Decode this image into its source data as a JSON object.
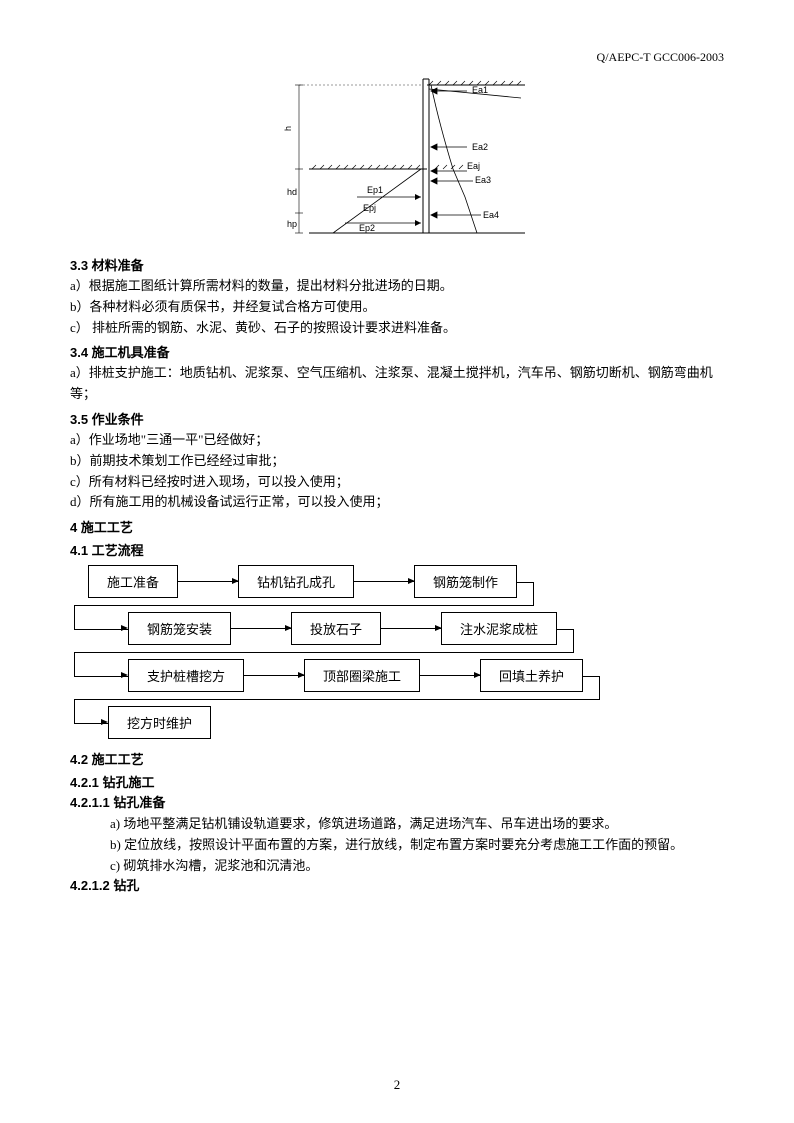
{
  "header": {
    "code": "Q/AEPC-T GCC006-2003"
  },
  "diagram": {
    "labels": {
      "Ea1": "Ea1",
      "Ea2": "Ea2",
      "Eaj": "Eaj",
      "Ea3": "Ea3",
      "Ea4": "Ea4",
      "Ep1": "Ep1",
      "Epj": "Epj",
      "Ep2": "Ep2",
      "h": "h",
      "hd": "hd",
      "hp": "hp"
    },
    "colors": {
      "line": "#000000",
      "bg": "#ffffff"
    }
  },
  "sections": {
    "s33": {
      "title": "3.3 材料准备",
      "items": [
        "a）根据施工图纸计算所需材料的数量，提出材料分批进场的日期。",
        "b）各种材料必须有质保书，并经复试合格方可使用。",
        "c） 排桩所需的钢筋、水泥、黄砂、石子的按照设计要求进料准备。"
      ]
    },
    "s34": {
      "title": "3.4 施工机具准备",
      "items": [
        "a）排桩支护施工：地质钻机、泥浆泵、空气压缩机、注浆泵、混凝土搅拌机，汽车吊、钢筋切断机、钢筋弯曲机等；"
      ]
    },
    "s35": {
      "title": "3.5 作业条件",
      "items": [
        "a）作业场地\"三通一平\"已经做好；",
        "b）前期技术策划工作已经经过审批；",
        "c）所有材料已经按时进入现场，可以投入使用；",
        "d）所有施工用的机械设备试运行正常，可以投入使用；"
      ]
    },
    "s4": {
      "title": "4   施工工艺"
    },
    "s41": {
      "title": "4.1 工艺流程"
    },
    "s42": {
      "title": "4.2 施工工艺"
    },
    "s421": {
      "title": "4.2.1  钻孔施工"
    },
    "s4211": {
      "title": "4.2.1.1  钻孔准备",
      "items": [
        "a)  场地平整满足钻机铺设轨道要求，修筑进场道路，满足进场汽车、吊车进出场的要求。",
        "b)  定位放线，按照设计平面布置的方案，进行放线，制定布置方案时要充分考虑施工工作面的预留。",
        "c)  砌筑排水沟槽，泥浆池和沉清池。"
      ]
    },
    "s4212": {
      "title": "4.2.1.2  钻孔"
    }
  },
  "flowchart": {
    "rows": [
      [
        "施工准备",
        "钻机钻孔成孔",
        "钢筋笼制作"
      ],
      [
        "钢筋笼安装",
        "投放石子",
        "注水泥浆成桩"
      ],
      [
        "支护桩槽挖方",
        "顶部圈梁施工",
        "回填土养护"
      ],
      [
        "挖方时维护"
      ]
    ],
    "box_border": "#000000",
    "arrow_color": "#000000"
  },
  "pageNumber": "2"
}
